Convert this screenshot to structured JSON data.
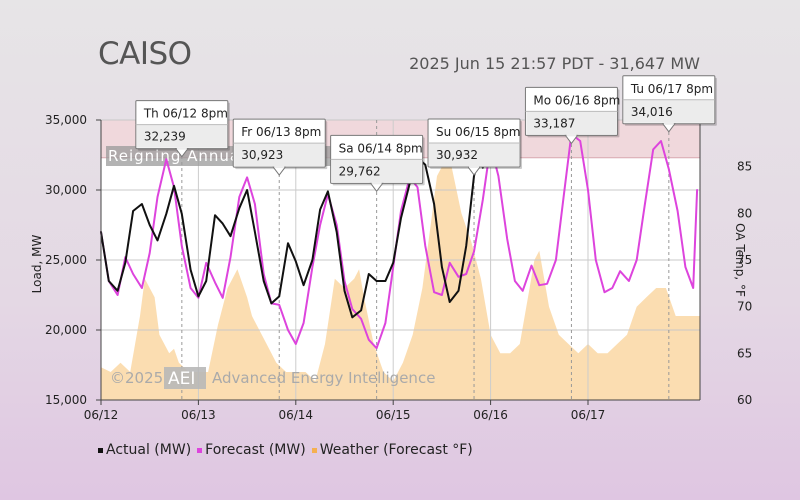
{
  "header": {
    "title": "CAISO",
    "subtitle": "2025 Jun 15 21:57 PDT - 31,647 MW"
  },
  "watermark": {
    "copyright": "©2025",
    "logo": "AEI",
    "company": "Advanced Energy Intelligence",
    "banner": "Reigning Annual"
  },
  "legend": [
    {
      "label": "Actual (MW)",
      "color": "#111111"
    },
    {
      "label": "Forecast (MW)",
      "color": "#dd44dd"
    },
    {
      "label": "Weather (Forecast °F)",
      "color": "#f5b050"
    }
  ],
  "colors": {
    "actual": "#111111",
    "forecast": "#dd44dd",
    "weather": "#fbd9a8",
    "highlight_band": "#f0d8dc",
    "red_label": "#dd0000"
  },
  "chart_data": {
    "type": "line",
    "xlabel": "",
    "ylabel": "Load, MW",
    "y2label": "OA Temp, °F",
    "x_tick_labels": [
      "06/12",
      "06/13",
      "06/14",
      "06/15",
      "06/16",
      "06/17"
    ],
    "x_tick_days": [
      0,
      1,
      2,
      3,
      4,
      5
    ],
    "xlim_days": [
      0,
      6.15
    ],
    "ylim": [
      15000,
      35000
    ],
    "y_ticks": [
      15000,
      20000,
      25000,
      30000,
      35000
    ],
    "y_tick_labels": [
      "15,000",
      "20,000",
      "25,000",
      "30,000",
      "35,000"
    ],
    "y2lim": [
      60,
      90
    ],
    "y2_ticks": [
      60,
      65,
      70,
      75,
      80,
      85
    ],
    "y2_tick_labels": [
      "60",
      "65",
      "70",
      "75",
      "80",
      "85"
    ],
    "highlight_band": [
      32300,
      35000
    ],
    "grid": true,
    "legend_position": "bottom-left",
    "series": [
      {
        "name": "Actual (MW)",
        "axis": "left",
        "x_days": [
          0,
          0.08,
          0.17,
          0.25,
          0.33,
          0.42,
          0.5,
          0.58,
          0.67,
          0.75,
          0.83,
          0.92,
          1.0,
          1.08,
          1.17,
          1.25,
          1.33,
          1.42,
          1.5,
          1.58,
          1.67,
          1.75,
          1.83,
          1.92,
          2.0,
          2.08,
          2.17,
          2.25,
          2.33,
          2.42,
          2.5,
          2.58,
          2.67,
          2.75,
          2.83,
          2.92,
          3.0,
          3.08,
          3.17,
          3.25,
          3.33,
          3.42,
          3.5,
          3.58,
          3.67,
          3.75,
          3.83,
          3.88,
          3.92
        ],
        "values": [
          27000,
          23500,
          22800,
          24800,
          28500,
          29000,
          27500,
          26400,
          28300,
          30300,
          28300,
          24300,
          22400,
          23500,
          28200,
          27600,
          26700,
          28700,
          30000,
          27000,
          23500,
          21900,
          22400,
          26200,
          24900,
          23200,
          25000,
          28600,
          29900,
          27000,
          22800,
          20900,
          21400,
          24000,
          23500,
          23500,
          24800,
          28000,
          30500,
          32300,
          31800,
          29000,
          24500,
          22000,
          22800,
          26000,
          31000,
          32300,
          31600
        ]
      },
      {
        "name": "Forecast (MW)",
        "axis": "left",
        "x_days": [
          0,
          0.08,
          0.17,
          0.25,
          0.33,
          0.42,
          0.5,
          0.58,
          0.67,
          0.75,
          0.83,
          0.92,
          1.0,
          1.08,
          1.17,
          1.25,
          1.33,
          1.42,
          1.5,
          1.58,
          1.67,
          1.75,
          1.83,
          1.92,
          2.0,
          2.08,
          2.17,
          2.25,
          2.33,
          2.42,
          2.5,
          2.58,
          2.67,
          2.75,
          2.83,
          2.92,
          3.0,
          3.08,
          3.17,
          3.25,
          3.33,
          3.42,
          3.5,
          3.58,
          3.67,
          3.75,
          3.83,
          3.92,
          4.0,
          4.08,
          4.17,
          4.25,
          4.33,
          4.42,
          4.5,
          4.58,
          4.67,
          4.75,
          4.83,
          4.92,
          5.0,
          5.08,
          5.17,
          5.25,
          5.33,
          5.42,
          5.5,
          5.58,
          5.67,
          5.75,
          5.83,
          5.92,
          6.0,
          6.08,
          6.12
        ],
        "values": [
          27000,
          23500,
          22500,
          25200,
          24000,
          23000,
          25500,
          29500,
          32200,
          30200,
          26000,
          23000,
          22300,
          24800,
          23400,
          22300,
          25200,
          29500,
          30900,
          29000,
          24000,
          21900,
          21800,
          20000,
          19000,
          20500,
          24500,
          27500,
          29700,
          27500,
          23500,
          21500,
          20800,
          19300,
          18700,
          20500,
          24500,
          28500,
          30900,
          30200,
          26000,
          22700,
          22500,
          24800,
          23800,
          24000,
          25600,
          29300,
          33200,
          31000,
          26500,
          23500,
          22800,
          24600,
          23200,
          23300,
          25000,
          29500,
          34000,
          33500,
          30000,
          25000,
          22700,
          23000,
          24200,
          23500,
          25000,
          28800,
          32900,
          33500,
          31500,
          28500,
          24500,
          23000,
          30000
        ]
      },
      {
        "name": "Weather (Forecast °F)",
        "axis": "right",
        "type": "area",
        "x_days": [
          0,
          0.1,
          0.2,
          0.3,
          0.35,
          0.4,
          0.45,
          0.5,
          0.55,
          0.6,
          0.65,
          0.7,
          0.75,
          0.8,
          0.9,
          1.0,
          1.1,
          1.2,
          1.3,
          1.4,
          1.5,
          1.55,
          1.6,
          1.7,
          1.8,
          1.9,
          2.0,
          2.1,
          2.2,
          2.3,
          2.4,
          2.5,
          2.6,
          2.65,
          2.7,
          2.8,
          2.9,
          3.0,
          3.1,
          3.2,
          3.3,
          3.4,
          3.45,
          3.5,
          3.55,
          3.6,
          3.7,
          3.8,
          3.85,
          3.9,
          4.0,
          4.1,
          4.2,
          4.3,
          4.4,
          4.45,
          4.5,
          4.55,
          4.6,
          4.7,
          4.8,
          4.9,
          5.0,
          5.1,
          5.2,
          5.3,
          5.4,
          5.5,
          5.6,
          5.7,
          5.8,
          5.9,
          6.0,
          6.1,
          6.15
        ],
        "values": [
          63.5,
          63,
          64,
          63,
          66,
          69,
          73,
          72,
          71,
          67,
          66,
          65,
          65.5,
          64,
          63,
          63,
          63,
          68,
          72,
          74,
          71,
          69,
          68,
          66,
          64,
          63,
          63,
          63,
          62,
          66,
          73,
          72,
          73,
          74,
          71,
          66,
          63,
          62,
          64,
          67,
          72,
          80,
          84,
          85,
          86,
          85,
          80,
          77,
          75,
          73,
          67,
          65,
          65,
          66,
          72,
          75,
          76,
          73,
          70,
          67,
          66,
          65,
          66,
          65,
          65,
          66,
          67,
          70,
          71,
          72,
          72,
          69,
          69,
          69,
          69
        ]
      }
    ],
    "annotations": [
      {
        "label": "Th 06/12 8pm",
        "value": "32,239",
        "x_day": 0.83,
        "y": 32239,
        "color": "#222222"
      },
      {
        "label": "Fr 06/13 8pm",
        "value": "30,923",
        "x_day": 1.83,
        "y": 30923,
        "color": "#222222"
      },
      {
        "label": "Sa 06/14 8pm",
        "value": "29,762",
        "x_day": 2.83,
        "y": 29762,
        "color": "#222222"
      },
      {
        "label": "Su 06/15 8pm",
        "value": "30,932",
        "x_day": 3.83,
        "y": 30932,
        "color": "#dd0000"
      },
      {
        "label": "Mo 06/16 8pm",
        "value": "33,187",
        "x_day": 4.83,
        "y": 33187,
        "color": "#222222"
      },
      {
        "label": "Tu 06/17 8pm",
        "value": "34,016",
        "x_day": 5.83,
        "y": 34016,
        "color": "#222222"
      }
    ]
  }
}
